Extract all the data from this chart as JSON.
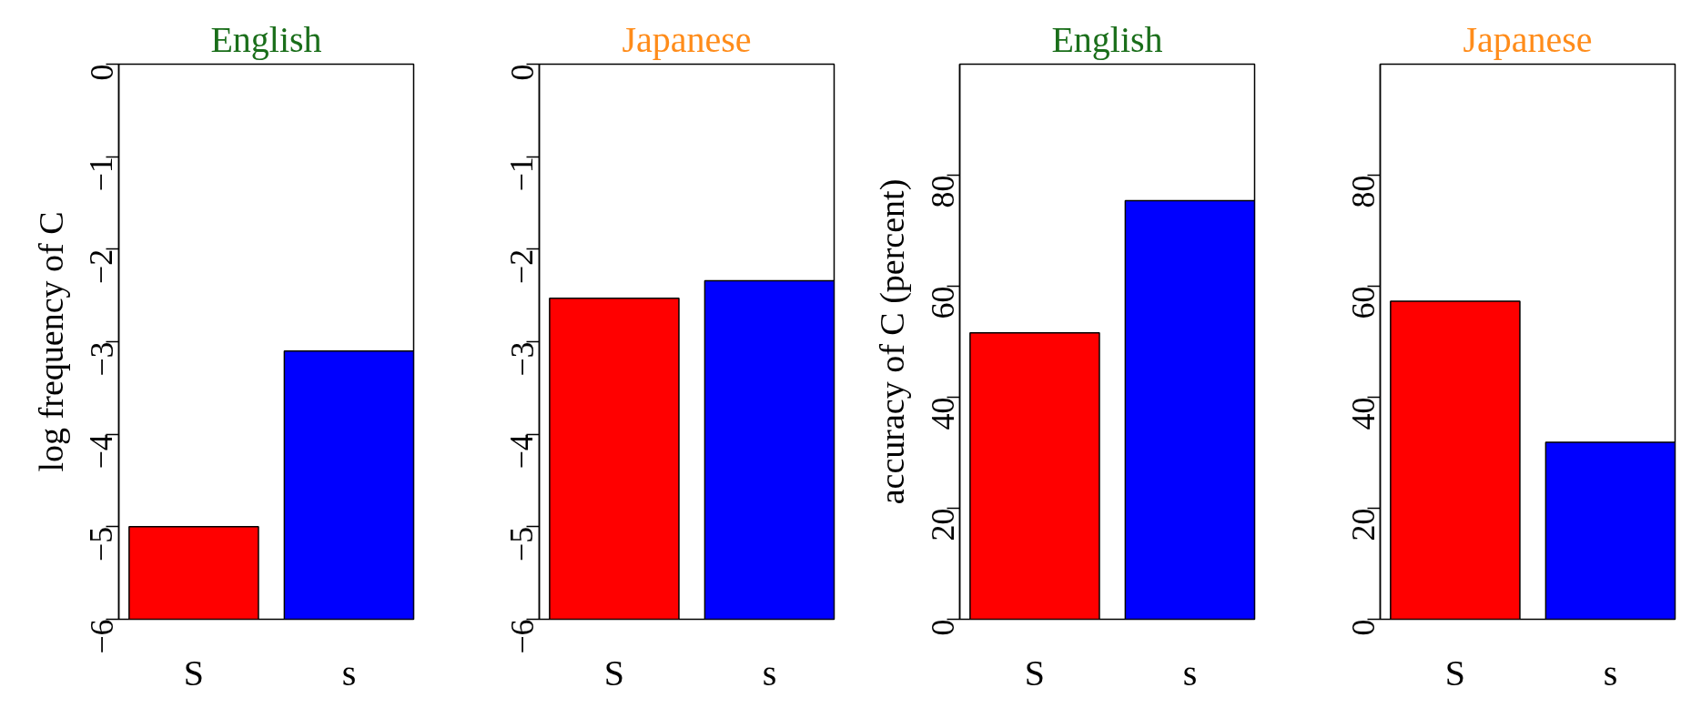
{
  "chart_data": [
    {
      "type": "bar",
      "title": "English",
      "ylabel": "log frequency of C",
      "categories": [
        "S",
        "s"
      ],
      "base": [
        -6,
        -6
      ],
      "values": [
        1.0,
        2.9
      ],
      "colors": [
        "#ff0000",
        "#0000ff"
      ],
      "ylim": [
        -6,
        0
      ],
      "yticks": [
        -6,
        -5,
        -4,
        -3,
        -2,
        -1,
        0
      ],
      "grid": false
    },
    {
      "type": "bar",
      "title": "Japanese",
      "categories": [
        "S",
        "s"
      ],
      "base": [
        -6,
        -6
      ],
      "values": [
        3.47,
        3.66
      ],
      "colors": [
        "#ff0000",
        "#0000ff"
      ],
      "ylim": [
        -6,
        0
      ],
      "yticks": [
        -6,
        -5,
        -4,
        -3,
        -2,
        -1,
        0
      ],
      "grid": false
    },
    {
      "type": "bar",
      "title": "English",
      "ylabel": "accuracy of C (percent)",
      "categories": [
        "S",
        "s"
      ],
      "values": [
        51.6,
        75.4
      ],
      "colors": [
        "#ff0000",
        "#0000ff"
      ],
      "ylim": [
        0,
        100
      ],
      "yticks": [
        0,
        20,
        40,
        60,
        80
      ],
      "grid": false
    },
    {
      "type": "bar",
      "title": "Japanese",
      "categories": [
        "S",
        "s"
      ],
      "values": [
        57.3,
        31.9
      ],
      "colors": [
        "#ff0000",
        "#0000ff"
      ],
      "ylim": [
        0,
        100
      ],
      "yticks": [
        0,
        20,
        40,
        60,
        80
      ],
      "grid": false
    }
  ]
}
